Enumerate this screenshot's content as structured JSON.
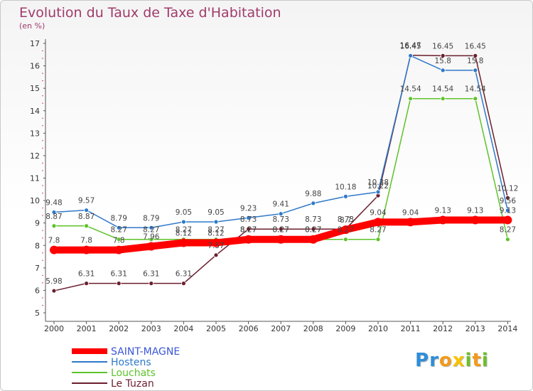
{
  "title": "Evolution du Taux de Taxe d'Habitation",
  "subtitle": "(en %)",
  "brand": {
    "letters": [
      "P",
      "r",
      "o",
      "x",
      "i",
      "t",
      "i"
    ],
    "colors": [
      "#2f8ed8",
      "#2f8ed8",
      "#f39a1a",
      "#f7c300",
      "#6dbf2b",
      "#f39a1a",
      "#6dbf2b"
    ]
  },
  "chart_data": {
    "type": "line",
    "x": [
      "2000",
      "2001",
      "2002",
      "2003",
      "2004",
      "2005",
      "2006",
      "2007",
      "2008",
      "2009",
      "2010",
      "2011",
      "2012",
      "2013",
      "2014"
    ],
    "ylim": [
      5,
      17
    ],
    "yticks": [
      "5",
      "6",
      "7",
      "8",
      "9",
      "10",
      "11",
      "12",
      "13",
      "14",
      "15",
      "16",
      "17"
    ],
    "grid": false,
    "legend_position": "bottom-left",
    "series": [
      {
        "name": "SAINT-MAGNE",
        "color": "#ff0000",
        "values": [
          7.8,
          7.8,
          7.8,
          7.96,
          8.12,
          8.12,
          8.27,
          8.27,
          8.27,
          8.7,
          9.04,
          9.04,
          9.13,
          9.13,
          9.13
        ],
        "labels": [
          "7.8",
          "7.8",
          "7.8",
          "7.96",
          "8.12",
          "8.12",
          "8.27",
          "8.27",
          "8.27",
          "8.7",
          "9.04",
          "9.04",
          "9.13",
          "9.13",
          "9.13"
        ]
      },
      {
        "name": "Hostens",
        "color": "#2f79c9",
        "values": [
          9.48,
          9.57,
          8.79,
          8.79,
          9.05,
          9.05,
          9.23,
          9.41,
          9.88,
          10.18,
          10.38,
          16.45,
          15.8,
          15.8,
          9.56
        ],
        "labels": [
          "9.48",
          "9.57",
          "8.79",
          "8.79",
          "9.05",
          "9.05",
          "9.23",
          "9.41",
          "9.88",
          "10.18",
          "10.38",
          "16.45",
          "15.8",
          "15.8",
          "9.56"
        ]
      },
      {
        "name": "Louchats",
        "color": "#5ec32a",
        "values": [
          8.87,
          8.87,
          8.27,
          8.27,
          8.27,
          8.27,
          8.27,
          8.27,
          8.27,
          8.27,
          8.27,
          14.54,
          14.54,
          14.54,
          8.27
        ],
        "labels": [
          "8.87",
          "8.87",
          "8.27",
          "8.27",
          "8.27",
          "8.27",
          "8.27",
          "8.27",
          "8.27",
          "8.27",
          "8.27",
          "14.54",
          "14.54",
          "14.54",
          "8.27"
        ]
      },
      {
        "name": "Le Tuzan",
        "color": "#6b1f2d",
        "values": [
          5.98,
          6.31,
          6.31,
          6.31,
          6.31,
          7.57,
          8.73,
          8.73,
          8.73,
          8.73,
          10.22,
          16.47,
          16.45,
          16.45,
          10.12
        ],
        "labels": [
          "5.98",
          "6.31",
          "6.31",
          "6.31",
          "6.31",
          "7.57",
          "8.73",
          "8.73",
          "8.73",
          "8.73",
          "10.22",
          "16.47",
          "16.45",
          "16.45",
          "10.12"
        ]
      }
    ]
  }
}
